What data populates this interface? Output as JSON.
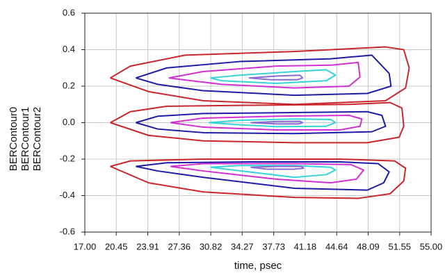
{
  "chart_data": {
    "type": "line",
    "xlabel": "time, psec",
    "ylabel": [
      "BERContour0",
      "BERContour1",
      "BERContour2"
    ],
    "xlim": [
      17,
      55
    ],
    "ylim": [
      -0.6,
      0.6
    ],
    "xticks": [
      {
        "value": 17,
        "label": "17.00"
      },
      {
        "value": 20.45,
        "label": "20.45"
      },
      {
        "value": 23.91,
        "label": "23.91"
      },
      {
        "value": 27.36,
        "label": "27.36"
      },
      {
        "value": 30.82,
        "label": "30.82"
      },
      {
        "value": 34.27,
        "label": "34.27"
      },
      {
        "value": 37.73,
        "label": "37.73"
      },
      {
        "value": 41.18,
        "label": "41.18"
      },
      {
        "value": 44.64,
        "label": "44.64"
      },
      {
        "value": 48.09,
        "label": "48.09"
      },
      {
        "value": 51.55,
        "label": "51.55"
      },
      {
        "value": 55,
        "label": "55.00"
      }
    ],
    "yticks": [
      -0.6,
      -0.4,
      -0.2,
      {
        "value": 0,
        "label": "0.0"
      },
      0.2,
      0.4,
      0.6
    ],
    "grid": true,
    "series": [
      {
        "color": "#c8262c",
        "x": [
          19.8,
          22,
          28,
          40,
          50,
          52,
          52.6,
          52.2,
          50,
          40,
          30,
          24,
          19.8
        ],
        "y": [
          0.245,
          0.31,
          0.37,
          0.39,
          0.415,
          0.4,
          0.3,
          0.19,
          0.12,
          0.1,
          0.12,
          0.17,
          0.245
        ]
      },
      {
        "color": "#1c1ca8",
        "x": [
          22.6,
          26,
          34,
          44,
          48.5,
          50.4,
          50.6,
          48,
          40,
          30,
          25,
          22.6
        ],
        "y": [
          0.245,
          0.3,
          0.335,
          0.35,
          0.37,
          0.27,
          0.2,
          0.16,
          0.15,
          0.175,
          0.21,
          0.245
        ]
      },
      {
        "color": "#d22fd2",
        "x": [
          26.2,
          30,
          38,
          44,
          47,
          47.2,
          46,
          40,
          32,
          26.2
        ],
        "y": [
          0.245,
          0.28,
          0.31,
          0.315,
          0.33,
          0.25,
          0.2,
          0.19,
          0.21,
          0.245
        ]
      },
      {
        "color": "#35d4d8",
        "x": [
          30.8,
          34,
          40,
          43.5,
          44.5,
          43.5,
          38,
          32,
          30.8
        ],
        "y": [
          0.245,
          0.26,
          0.28,
          0.29,
          0.26,
          0.23,
          0.215,
          0.23,
          0.245
        ]
      },
      {
        "color": "#8a6ad0",
        "x": [
          35,
          38,
          40.6,
          40.9,
          40.3,
          37.5,
          35
        ],
        "y": [
          0.245,
          0.255,
          0.26,
          0.245,
          0.235,
          0.235,
          0.245
        ]
      },
      {
        "color": "#c8262c",
        "x": [
          19.8,
          22,
          26,
          35,
          46,
          50.5,
          51.8,
          52,
          51.5,
          48,
          40,
          30,
          24,
          19.8
        ],
        "y": [
          0,
          0.06,
          0.09,
          0.095,
          0.1,
          0.11,
          0.08,
          -0.02,
          -0.08,
          -0.11,
          -0.11,
          -0.1,
          -0.07,
          0
        ]
      },
      {
        "color": "#1c1ca8",
        "x": [
          22.6,
          25,
          30,
          40,
          48,
          49.6,
          50,
          48.5,
          40,
          30,
          25,
          22.6
        ],
        "y": [
          0,
          0.035,
          0.05,
          0.055,
          0.06,
          0.04,
          -0.02,
          -0.05,
          -0.06,
          -0.055,
          -0.035,
          0
        ]
      },
      {
        "color": "#d22fd2",
        "x": [
          26.4,
          30,
          38,
          46,
          47.4,
          47.2,
          45,
          38,
          30,
          26.4
        ],
        "y": [
          0,
          0.025,
          0.035,
          0.04,
          0.02,
          -0.02,
          -0.04,
          -0.04,
          -0.025,
          0
        ]
      },
      {
        "color": "#35d4d8",
        "x": [
          30.6,
          34,
          40,
          44,
          44.5,
          43.5,
          38,
          34,
          30.6
        ],
        "y": [
          0,
          0.013,
          0.02,
          0.017,
          0,
          -0.02,
          -0.022,
          -0.012,
          0
        ]
      },
      {
        "color": "#8a6ad0",
        "x": [
          35.2,
          38,
          40.6,
          40.9,
          40.5,
          38,
          35.2
        ],
        "y": [
          0,
          0.006,
          0.007,
          0,
          -0.007,
          -0.007,
          0
        ]
      },
      {
        "color": "#c8262c",
        "x": [
          19.8,
          22,
          30,
          45,
          51,
          52.2,
          52,
          50.5,
          47,
          40,
          30,
          24,
          19.8
        ],
        "y": [
          -0.24,
          -0.21,
          -0.2,
          -0.2,
          -0.21,
          -0.25,
          -0.32,
          -0.39,
          -0.415,
          -0.41,
          -0.38,
          -0.33,
          -0.24
        ]
      },
      {
        "color": "#1c1ca8",
        "x": [
          22.6,
          26,
          35,
          45,
          49.2,
          50.4,
          49.8,
          48,
          40,
          30,
          25,
          22.6
        ],
        "y": [
          -0.24,
          -0.22,
          -0.215,
          -0.215,
          -0.225,
          -0.27,
          -0.33,
          -0.37,
          -0.36,
          -0.3,
          -0.265,
          -0.24
        ]
      },
      {
        "color": "#d22fd2",
        "x": [
          26.4,
          30,
          40,
          46.2,
          47.6,
          46.8,
          44,
          38,
          30,
          26.4
        ],
        "y": [
          -0.24,
          -0.225,
          -0.225,
          -0.23,
          -0.26,
          -0.31,
          -0.33,
          -0.31,
          -0.265,
          -0.24
        ]
      },
      {
        "color": "#35d4d8",
        "x": [
          30.8,
          34,
          40,
          44,
          44.5,
          43.5,
          40,
          35,
          30.8
        ],
        "y": [
          -0.245,
          -0.235,
          -0.235,
          -0.245,
          -0.26,
          -0.285,
          -0.3,
          -0.27,
          -0.245
        ]
      },
      {
        "color": "#8a6ad0",
        "x": [
          35.2,
          38,
          40.8,
          41,
          40,
          37,
          35.2
        ],
        "y": [
          -0.245,
          -0.24,
          -0.24,
          -0.25,
          -0.255,
          -0.255,
          -0.245
        ]
      }
    ]
  }
}
